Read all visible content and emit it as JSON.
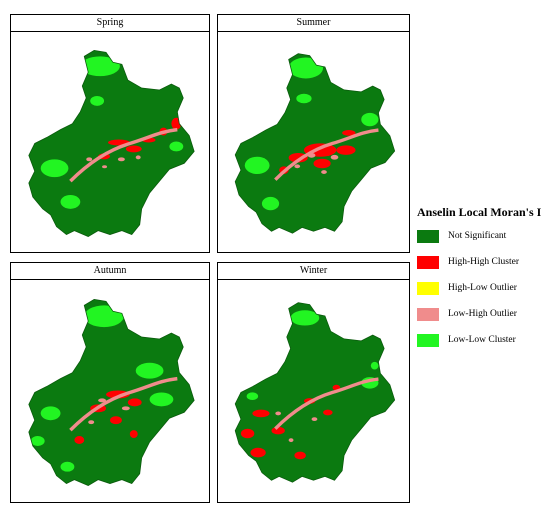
{
  "panels": [
    {
      "title": "Spring"
    },
    {
      "title": "Summer"
    },
    {
      "title": "Autumn"
    },
    {
      "title": "Winter"
    }
  ],
  "legend": {
    "title": "Anselin Local Moran's I",
    "items": [
      {
        "label": "Not Significant",
        "color": "#0b7a10"
      },
      {
        "label": "High-High Cluster",
        "color": "#ff0000"
      },
      {
        "label": "High-Low Outlier",
        "color": "#ffff00"
      },
      {
        "label": "Low-High Outlier",
        "color": "#f08c8c"
      },
      {
        "label": "Low-Low Cluster",
        "color": "#22f522"
      }
    ]
  }
}
